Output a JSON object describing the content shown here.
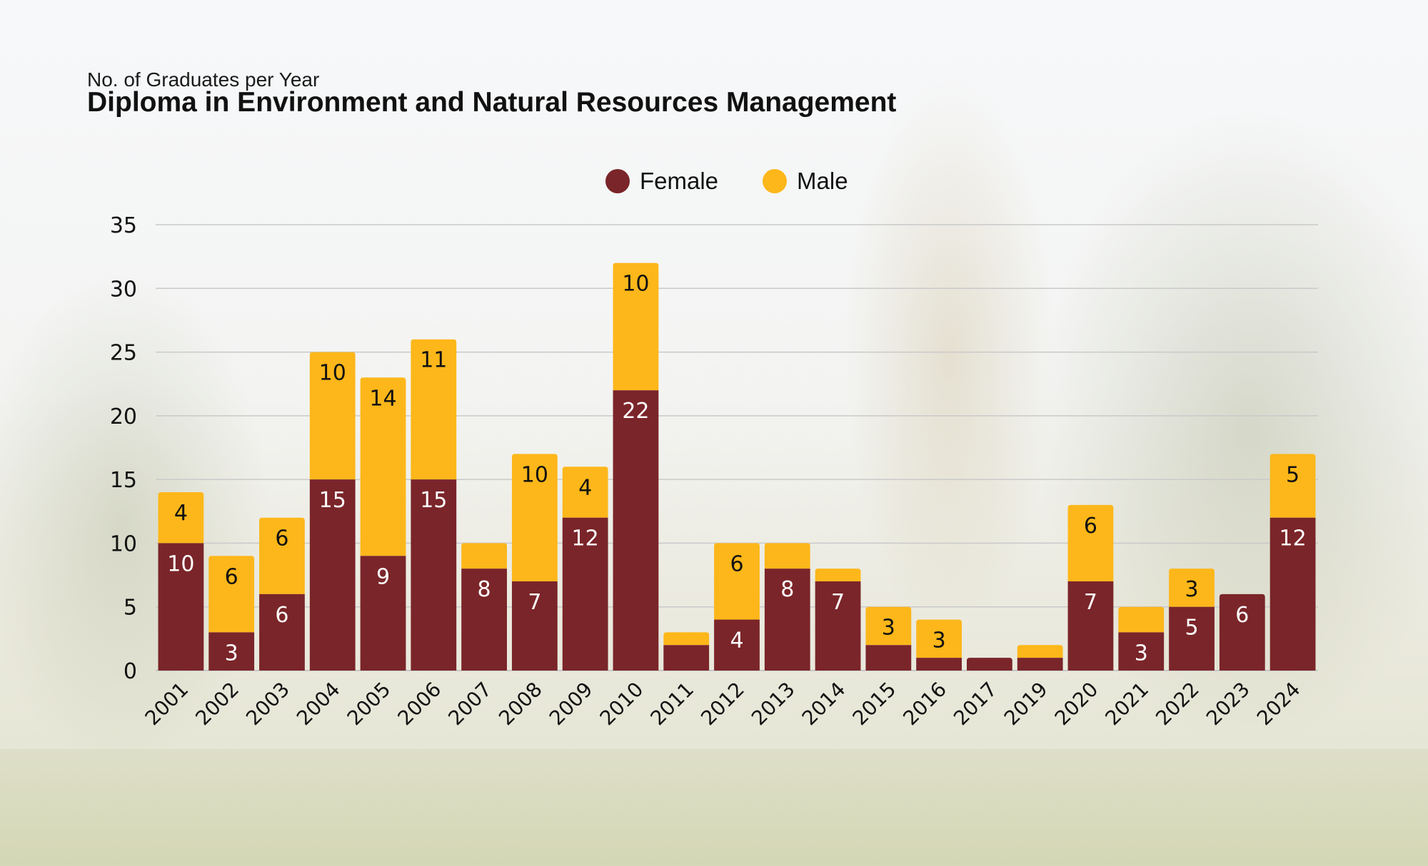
{
  "header": {
    "subtitle": "No. of Graduates per Year",
    "title": "Diploma in Environment and Natural Resources Management"
  },
  "legend": [
    {
      "label": "Female",
      "color": "#7a2529"
    },
    {
      "label": "Male",
      "color": "#fdb71a"
    }
  ],
  "chart_data": {
    "type": "bar",
    "stacked": true,
    "title": "Diploma in Environment and Natural Resources Management",
    "subtitle": "No. of Graduates per Year",
    "xlabel": "",
    "ylabel": "",
    "ylim": [
      0,
      35
    ],
    "yticks": [
      0,
      5,
      10,
      15,
      20,
      25,
      30,
      35
    ],
    "grid": true,
    "legend_position": "top-center",
    "categories": [
      "2001",
      "2002",
      "2003",
      "2004",
      "2005",
      "2006",
      "2007",
      "2008",
      "2009",
      "2010",
      "2011",
      "2012",
      "2013",
      "2014",
      "2015",
      "2016",
      "2017",
      "2019",
      "2020",
      "2021",
      "2022",
      "2023",
      "2024"
    ],
    "series": [
      {
        "name": "Female",
        "color": "#7a2529",
        "values": [
          10,
          3,
          6,
          15,
          9,
          15,
          8,
          7,
          12,
          22,
          2,
          4,
          8,
          7,
          2,
          1,
          1,
          1,
          7,
          3,
          5,
          6,
          12
        ],
        "labels": [
          "10",
          "3",
          "6",
          "15",
          "9",
          "15",
          "8",
          "7",
          "12",
          "22",
          "",
          "4",
          "8",
          "7",
          "",
          "",
          "",
          "",
          "7",
          "3",
          "5",
          "6",
          "12"
        ]
      },
      {
        "name": "Male",
        "color": "#fdb71a",
        "values": [
          4,
          6,
          6,
          10,
          14,
          11,
          2,
          10,
          4,
          10,
          1,
          6,
          2,
          1,
          3,
          3,
          0,
          1,
          6,
          2,
          3,
          0,
          5
        ],
        "labels": [
          "4",
          "6",
          "6",
          "10",
          "14",
          "11",
          "",
          "10",
          "4",
          "10",
          "",
          "6",
          "",
          "",
          "3",
          "3",
          "",
          "",
          "6",
          "",
          "3",
          "",
          "5"
        ]
      }
    ]
  }
}
